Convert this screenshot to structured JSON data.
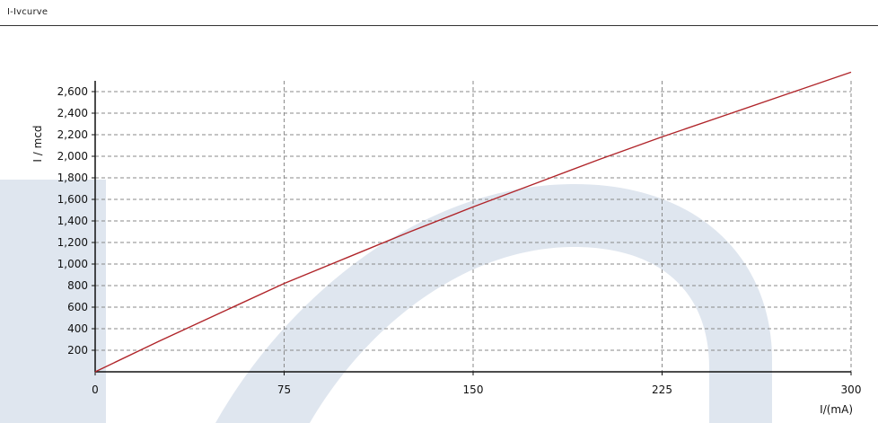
{
  "header": {
    "title": "I-Ivcurve"
  },
  "colors": {
    "curve": "#b0252a",
    "watermark": "#dfe6ef",
    "grid": "#8a8a8a",
    "axis": "#111111"
  },
  "chart_data": {
    "type": "line",
    "title": "",
    "xlabel": "I/(mA)",
    "ylabel": "I / mcd",
    "xlim": [
      0,
      300
    ],
    "ylim": [
      0,
      2700
    ],
    "x_ticks": [
      0,
      75,
      150,
      225,
      300
    ],
    "x_tick_labels": [
      "0",
      "75",
      "150",
      "225",
      "300"
    ],
    "y_ticks": [
      200,
      400,
      600,
      800,
      1000,
      1200,
      1400,
      1600,
      1800,
      2000,
      2200,
      2400,
      2600
    ],
    "y_tick_labels": [
      "200",
      "400",
      "600",
      "800",
      "1,000",
      "1,200",
      "1,400",
      "1,600",
      "1,800",
      "2,000",
      "2,200",
      "2,400",
      "2,600"
    ],
    "grid": true,
    "series": [
      {
        "x": [
          0,
          25,
          50,
          75,
          100,
          125,
          150,
          175,
          200,
          225,
          250,
          275,
          300
        ],
        "values": [
          0,
          280,
          550,
          820,
          1060,
          1300,
          1530,
          1750,
          1970,
          2180,
          2380,
          2580,
          2780
        ]
      }
    ]
  }
}
